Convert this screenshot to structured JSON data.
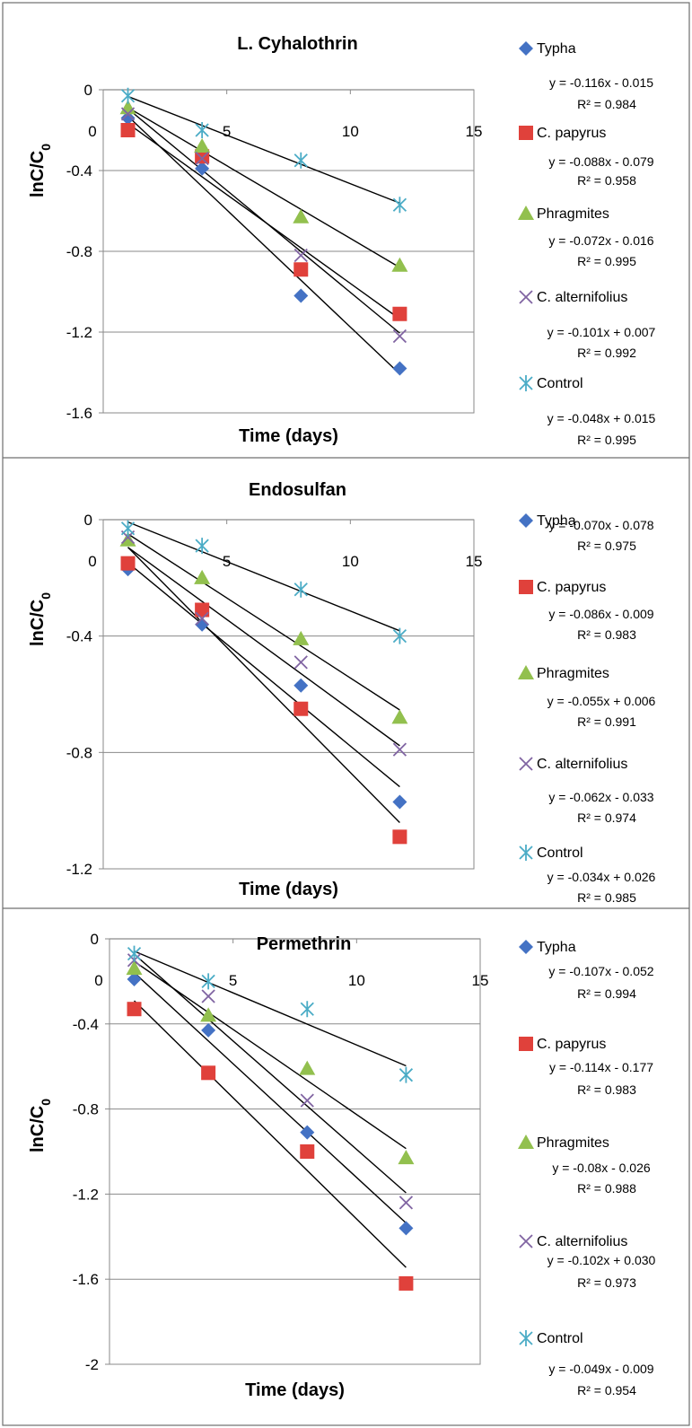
{
  "chart_data": [
    {
      "type": "scatter",
      "title": "L. Cyhalothrin",
      "xlabel": "Time (days)",
      "ylabel": "lnC/C",
      "ylabel_sub": "0",
      "xlim": [
        0,
        15
      ],
      "ylim": [
        -1.6,
        0
      ],
      "xticks": [
        0,
        5,
        10,
        15
      ],
      "yticks": [
        0,
        -0.4,
        -0.8,
        -1.2,
        -1.6
      ],
      "grid": "horizontal",
      "legend": "right",
      "x": [
        1,
        4,
        8,
        12
      ],
      "series": [
        {
          "name": "Typha",
          "marker": "diamond",
          "color": "#4472C4",
          "values": [
            -0.14,
            -0.39,
            -1.02,
            -1.38
          ],
          "slope": -0.116,
          "intercept": -0.015,
          "equation": "y = -0.116x - 0.015",
          "r2": "R² = 0.984"
        },
        {
          "name": "C. papyrus",
          "marker": "square",
          "color": "#E0413B",
          "values": [
            -0.2,
            -0.33,
            -0.89,
            -1.11
          ],
          "slope": -0.088,
          "intercept": -0.079,
          "equation": "y = -0.088x - 0.079",
          "r2": "R² = 0.958"
        },
        {
          "name": "Phragmites",
          "marker": "triangle",
          "color": "#92C04E",
          "values": [
            -0.09,
            -0.28,
            -0.63,
            -0.87
          ],
          "slope": -0.072,
          "intercept": -0.016,
          "equation": "y = -0.072x - 0.016",
          "r2": "R² = 0.995"
        },
        {
          "name": "C. alternifolius",
          "marker": "x",
          "color": "#8064A2",
          "values": [
            -0.12,
            -0.34,
            -0.82,
            -1.22
          ],
          "slope": -0.101,
          "intercept": 0.007,
          "equation": "y = -0.101x + 0.007",
          "r2": "R² = 0.992"
        },
        {
          "name": "Control",
          "marker": "star",
          "color": "#4BACC6",
          "values": [
            -0.03,
            -0.2,
            -0.35,
            -0.57
          ],
          "slope": -0.048,
          "intercept": 0.015,
          "equation": "y = -0.048x + 0.015",
          "r2": "R² = 0.995"
        }
      ]
    },
    {
      "type": "scatter",
      "title": "Endosulfan",
      "xlabel": "Time (days)",
      "ylabel": "lnC/C",
      "ylabel_sub": "0",
      "xlim": [
        0,
        15
      ],
      "ylim": [
        -1.2,
        0
      ],
      "xticks": [
        0,
        5,
        10,
        15
      ],
      "yticks": [
        0,
        -0.4,
        -0.8,
        -1.2
      ],
      "grid": "horizontal",
      "legend": "right",
      "x": [
        1,
        4,
        8,
        12
      ],
      "series": [
        {
          "name": "Typha",
          "marker": "diamond",
          "color": "#4472C4",
          "values": [
            -0.17,
            -0.36,
            -0.57,
            -0.97
          ],
          "slope": -0.07,
          "intercept": -0.078,
          "equation": "y = -0.070x - 0.078",
          "r2": "R² = 0.975"
        },
        {
          "name": "C. papyrus",
          "marker": "square",
          "color": "#E0413B",
          "values": [
            -0.15,
            -0.31,
            -0.65,
            -1.09
          ],
          "slope": -0.086,
          "intercept": -0.009,
          "equation": "y = -0.086x - 0.009",
          "r2": "R² = 0.983"
        },
        {
          "name": "Phragmites",
          "marker": "triangle",
          "color": "#92C04E",
          "values": [
            -0.07,
            -0.2,
            -0.41,
            -0.68
          ],
          "slope": -0.055,
          "intercept": 0.006,
          "equation": "y = -0.055x + 0.006",
          "r2": "R² = 0.991"
        },
        {
          "name": "C. alternifolius",
          "marker": "x",
          "color": "#8064A2",
          "values": [
            -0.06,
            -0.34,
            -0.49,
            -0.79
          ],
          "slope": -0.062,
          "intercept": -0.033,
          "equation": "y = -0.062x - 0.033",
          "r2": "R² = 0.974"
        },
        {
          "name": "Control",
          "marker": "star",
          "color": "#4BACC6",
          "values": [
            -0.03,
            -0.09,
            -0.24,
            -0.4
          ],
          "slope": -0.034,
          "intercept": 0.026,
          "equation": "y = -0.034x + 0.026",
          "r2": "R² = 0.985"
        }
      ]
    },
    {
      "type": "scatter",
      "title": "Permethrin",
      "xlabel": "Time (days)",
      "ylabel": "lnC/C",
      "ylabel_sub": "0",
      "xlim": [
        0,
        15
      ],
      "ylim": [
        -2,
        0
      ],
      "xticks": [
        0,
        5,
        10,
        15
      ],
      "yticks": [
        0,
        -0.4,
        -0.8,
        -1.2,
        -1.6,
        -2
      ],
      "grid": "horizontal",
      "legend": "right",
      "x": [
        1,
        4,
        8,
        12
      ],
      "series": [
        {
          "name": "Typha",
          "marker": "diamond",
          "color": "#4472C4",
          "values": [
            -0.19,
            -0.43,
            -0.91,
            -1.36
          ],
          "slope": -0.107,
          "intercept": -0.052,
          "equation": "y = -0.107x - 0.052",
          "r2": "R² = 0.994"
        },
        {
          "name": "C. papyrus",
          "marker": "square",
          "color": "#E0413B",
          "values": [
            -0.33,
            -0.63,
            -1,
            -1.62
          ],
          "slope": -0.114,
          "intercept": -0.177,
          "equation": "y = -0.114x - 0.177",
          "r2": "R² = 0.983"
        },
        {
          "name": "Phragmites",
          "marker": "triangle",
          "color": "#92C04E",
          "values": [
            -0.14,
            -0.36,
            -0.61,
            -1.03
          ],
          "slope": -0.08,
          "intercept": -0.026,
          "equation": "y = -0.08x - 0.026",
          "r2": "R² = 0.988"
        },
        {
          "name": "C. alternifolius",
          "marker": "x",
          "color": "#8064A2",
          "values": [
            -0.1,
            -0.27,
            -0.76,
            -1.24
          ],
          "slope": -0.102,
          "intercept": 0.03,
          "equation": "y = -0.102x + 0.030",
          "r2": "R² = 0.973"
        },
        {
          "name": "Control",
          "marker": "star",
          "color": "#4BACC6",
          "values": [
            -0.07,
            -0.2,
            -0.33,
            -0.64
          ],
          "slope": -0.049,
          "intercept": -0.009,
          "equation": "y = -0.049x - 0.009",
          "r2": "R² = 0.954"
        }
      ]
    }
  ]
}
